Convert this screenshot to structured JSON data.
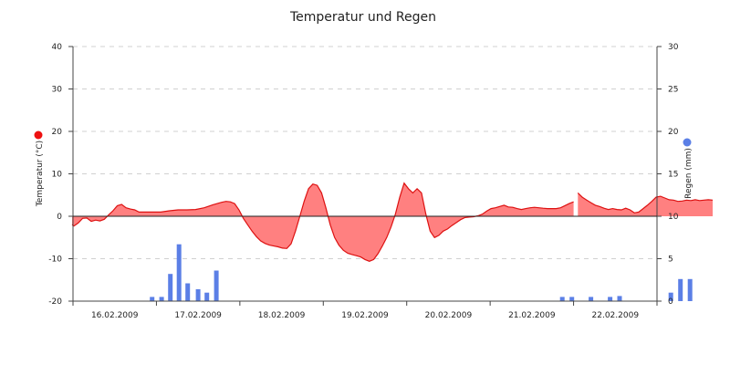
{
  "chart_data": {
    "type": "area",
    "title": "Temperatur und Regen",
    "y_left_label": "Temperatur (°C)",
    "y_right_label": "Regen (mm)",
    "y_left_range": [
      -20,
      40
    ],
    "y_left_ticks": [
      "-20",
      "-10",
      "0",
      "10",
      "20",
      "30",
      "40"
    ],
    "y_right_range": [
      0,
      30
    ],
    "y_right_ticks": [
      "0",
      "5",
      "10",
      "15",
      "20",
      "25",
      "30"
    ],
    "x_range_days": [
      "16.02.2009 00:00",
      "23.02.2009 00:00"
    ],
    "x_tick_labels": [
      "16.02.2009",
      "17.02.2009",
      "18.02.2009",
      "19.02.2009",
      "20.02.2009",
      "21.02.2009",
      "22.02.2009"
    ],
    "grid": "horizontal dashed",
    "legend_markers": {
      "temperature": "left",
      "rain": "right"
    },
    "colors": {
      "temp_line": "#dd1111",
      "temp_fill": "#ff8080",
      "rain_bar": "#5b7fe6",
      "temp_marker": "#ee1111",
      "rain_marker": "#5b7fe6",
      "grid": "#d0d0d0"
    },
    "temperature_series": {
      "name": "Temperatur",
      "segments": [
        [
          [
            "15.02.2009 23:45",
            -2.0
          ],
          [
            "16.02.2009 00:15",
            -2.3
          ],
          [
            "16.02.2009 01:30",
            -1.6
          ],
          [
            "16.02.2009 02:45",
            -0.5
          ],
          [
            "16.02.2009 04:00",
            -0.4
          ],
          [
            "16.02.2009 05:15",
            -1.2
          ],
          [
            "16.02.2009 06:30",
            -0.9
          ],
          [
            "16.02.2009 07:45",
            -1.1
          ],
          [
            "16.02.2009 09:00",
            -0.7
          ],
          [
            "16.02.2009 10:15",
            0.3
          ],
          [
            "16.02.2009 11:30",
            1.3
          ],
          [
            "16.02.2009 12:45",
            2.5
          ],
          [
            "16.02.2009 14:00",
            2.8
          ],
          [
            "16.02.2009 15:15",
            2.0
          ],
          [
            "16.02.2009 16:30",
            1.7
          ],
          [
            "16.02.2009 17:45",
            1.5
          ],
          [
            "16.02.2009 19:00",
            1.0
          ],
          [
            "16.02.2009 20:15",
            1.0
          ],
          [
            "16.02.2009 22:45",
            1.0
          ],
          [
            "17.02.2009 01:15",
            1.0
          ],
          [
            "17.02.2009 03:45",
            1.3
          ],
          [
            "17.02.2009 06:15",
            1.5
          ],
          [
            "17.02.2009 08:45",
            1.5
          ],
          [
            "17.02.2009 11:15",
            1.6
          ],
          [
            "17.02.2009 13:45",
            2.0
          ],
          [
            "17.02.2009 16:15",
            2.7
          ],
          [
            "17.02.2009 18:45",
            3.3
          ],
          [
            "17.02.2009 20:00",
            3.5
          ],
          [
            "17.02.2009 21:15",
            3.4
          ],
          [
            "17.02.2009 22:30",
            3.0
          ],
          [
            "17.02.2009 23:45",
            1.5
          ],
          [
            "18.02.2009 01:00",
            -0.5
          ],
          [
            "18.02.2009 02:15",
            -2.0
          ],
          [
            "18.02.2009 03:30",
            -3.5
          ],
          [
            "18.02.2009 04:45",
            -4.8
          ],
          [
            "18.02.2009 06:00",
            -5.8
          ],
          [
            "18.02.2009 07:15",
            -6.4
          ],
          [
            "18.02.2009 08:30",
            -6.8
          ],
          [
            "18.02.2009 09:45",
            -7.0
          ],
          [
            "18.02.2009 11:00",
            -7.2
          ],
          [
            "18.02.2009 12:15",
            -7.5
          ],
          [
            "18.02.2009 13:30",
            -7.6
          ],
          [
            "18.02.2009 14:45",
            -6.5
          ],
          [
            "18.02.2009 16:00",
            -3.5
          ],
          [
            "18.02.2009 17:15",
            0.0
          ],
          [
            "18.02.2009 18:30",
            3.5
          ],
          [
            "18.02.2009 19:45",
            6.5
          ],
          [
            "18.02.2009 21:00",
            7.6
          ],
          [
            "18.02.2009 22:15",
            7.3
          ],
          [
            "18.02.2009 23:30",
            5.5
          ],
          [
            "19.02.2009 00:45",
            2.0
          ],
          [
            "19.02.2009 02:00",
            -2.0
          ],
          [
            "19.02.2009 03:15",
            -5.0
          ],
          [
            "19.02.2009 04:30",
            -6.8
          ],
          [
            "19.02.2009 05:45",
            -8.0
          ],
          [
            "19.02.2009 07:00",
            -8.7
          ],
          [
            "19.02.2009 08:15",
            -9.0
          ],
          [
            "19.02.2009 09:30",
            -9.3
          ],
          [
            "19.02.2009 10:45",
            -9.6
          ],
          [
            "19.02.2009 12:00",
            -10.2
          ],
          [
            "19.02.2009 13:15",
            -10.6
          ],
          [
            "19.02.2009 14:30",
            -10.2
          ],
          [
            "19.02.2009 15:45",
            -8.8
          ],
          [
            "19.02.2009 17:00",
            -7.0
          ],
          [
            "19.02.2009 18:15",
            -5.0
          ],
          [
            "19.02.2009 19:30",
            -2.5
          ],
          [
            "19.02.2009 20:45",
            0.5
          ],
          [
            "19.02.2009 22:00",
            4.5
          ],
          [
            "19.02.2009 23:15",
            7.8
          ],
          [
            "20.02.2009 00:30",
            6.5
          ],
          [
            "20.02.2009 01:45",
            5.5
          ],
          [
            "20.02.2009 03:00",
            6.5
          ],
          [
            "20.02.2009 04:15",
            5.5
          ],
          [
            "20.02.2009 05:30",
            0.5
          ],
          [
            "20.02.2009 06:45",
            -3.5
          ],
          [
            "20.02.2009 08:00",
            -5.0
          ],
          [
            "20.02.2009 09:15",
            -4.5
          ],
          [
            "20.02.2009 10:30",
            -3.5
          ],
          [
            "20.02.2009 11:45",
            -3.0
          ],
          [
            "20.02.2009 13:00",
            -2.2
          ],
          [
            "20.02.2009 14:15",
            -1.5
          ],
          [
            "20.02.2009 15:30",
            -0.8
          ],
          [
            "20.02.2009 16:45",
            -0.3
          ],
          [
            "20.02.2009 18:00",
            -0.2
          ],
          [
            "20.02.2009 19:15",
            -0.1
          ],
          [
            "20.02.2009 20:30",
            0.1
          ],
          [
            "20.02.2009 21:45",
            0.5
          ],
          [
            "20.02.2009 23:00",
            1.2
          ],
          [
            "21.02.2009 00:15",
            1.8
          ],
          [
            "21.02.2009 01:30",
            2.0
          ],
          [
            "21.02.2009 02:45",
            2.3
          ],
          [
            "21.02.2009 04:00",
            2.6
          ],
          [
            "21.02.2009 05:15",
            2.2
          ],
          [
            "21.02.2009 06:30",
            2.1
          ],
          [
            "21.02.2009 07:45",
            1.8
          ],
          [
            "21.02.2009 09:00",
            1.6
          ],
          [
            "21.02.2009 10:15",
            1.8
          ],
          [
            "21.02.2009 11:30",
            2.0
          ],
          [
            "21.02.2009 12:45",
            2.1
          ],
          [
            "21.02.2009 14:00",
            2.0
          ],
          [
            "21.02.2009 15:15",
            1.9
          ],
          [
            "21.02.2009 16:30",
            1.8
          ],
          [
            "21.02.2009 17:45",
            1.8
          ],
          [
            "21.02.2009 19:00",
            1.8
          ],
          [
            "21.02.2009 20:15",
            2.0
          ],
          [
            "21.02.2009 21:30",
            2.5
          ],
          [
            "21.02.2009 22:45",
            3.0
          ],
          [
            "22.02.2009 00:00",
            3.4
          ]
        ],
        [
          [
            "22.02.2009 01:15",
            5.5
          ],
          [
            "22.02.2009 02:30",
            4.5
          ],
          [
            "22.02.2009 03:45",
            3.8
          ],
          [
            "22.02.2009 05:00",
            3.2
          ],
          [
            "22.02.2009 06:15",
            2.6
          ],
          [
            "22.02.2009 07:30",
            2.3
          ],
          [
            "22.02.2009 08:45",
            1.9
          ],
          [
            "22.02.2009 10:00",
            1.6
          ],
          [
            "22.02.2009 11:15",
            1.8
          ],
          [
            "22.02.2009 12:30",
            1.6
          ],
          [
            "22.02.2009 13:45",
            1.5
          ],
          [
            "22.02.2009 15:00",
            1.9
          ],
          [
            "22.02.2009 16:15",
            1.5
          ],
          [
            "22.02.2009 17:30",
            0.8
          ],
          [
            "22.02.2009 18:45",
            1.0
          ],
          [
            "22.02.2009 20:00",
            1.8
          ],
          [
            "22.02.2009 21:15",
            2.6
          ],
          [
            "22.02.2009 22:30",
            3.5
          ],
          [
            "22.02.2009 23:45",
            4.5
          ],
          [
            "23.02.2009 01:00",
            4.7
          ],
          [
            "23.02.2009 02:15",
            4.3
          ],
          [
            "23.02.2009 03:30",
            3.9
          ],
          [
            "23.02.2009 04:45",
            3.8
          ],
          [
            "23.02.2009 06:00",
            3.5
          ],
          [
            "23.02.2009 07:15",
            3.6
          ],
          [
            "23.02.2009 08:30",
            3.8
          ],
          [
            "23.02.2009 09:45",
            3.7
          ],
          [
            "23.02.2009 11:00",
            3.9
          ],
          [
            "23.02.2009 12:15",
            3.7
          ],
          [
            "23.02.2009 13:30",
            3.8
          ],
          [
            "23.02.2009 14:45",
            3.9
          ],
          [
            "23.02.2009 16:00",
            3.8
          ]
        ]
      ]
    },
    "rain_series": {
      "name": "Regen",
      "bars": [
        [
          "16.02.2009 22:45",
          0.5
        ],
        [
          "17.02.2009 01:30",
          0.5
        ],
        [
          "17.02.2009 04:00",
          3.2
        ],
        [
          "17.02.2009 06:30",
          6.7
        ],
        [
          "17.02.2009 09:00",
          2.1
        ],
        [
          "17.02.2009 12:00",
          1.4
        ],
        [
          "17.02.2009 14:30",
          1.0
        ],
        [
          "17.02.2009 17:15",
          3.6
        ],
        [
          "21.02.2009 20:45",
          0.5
        ],
        [
          "21.02.2009 23:30",
          0.5
        ],
        [
          "22.02.2009 05:00",
          0.5
        ],
        [
          "22.02.2009 10:30",
          0.5
        ],
        [
          "22.02.2009 13:15",
          0.6
        ],
        [
          "23.02.2009 04:00",
          1.0
        ],
        [
          "23.02.2009 06:45",
          2.6
        ],
        [
          "23.02.2009 09:30",
          2.6
        ],
        [
          "23.02.2009 23:00",
          0.5
        ]
      ]
    }
  }
}
